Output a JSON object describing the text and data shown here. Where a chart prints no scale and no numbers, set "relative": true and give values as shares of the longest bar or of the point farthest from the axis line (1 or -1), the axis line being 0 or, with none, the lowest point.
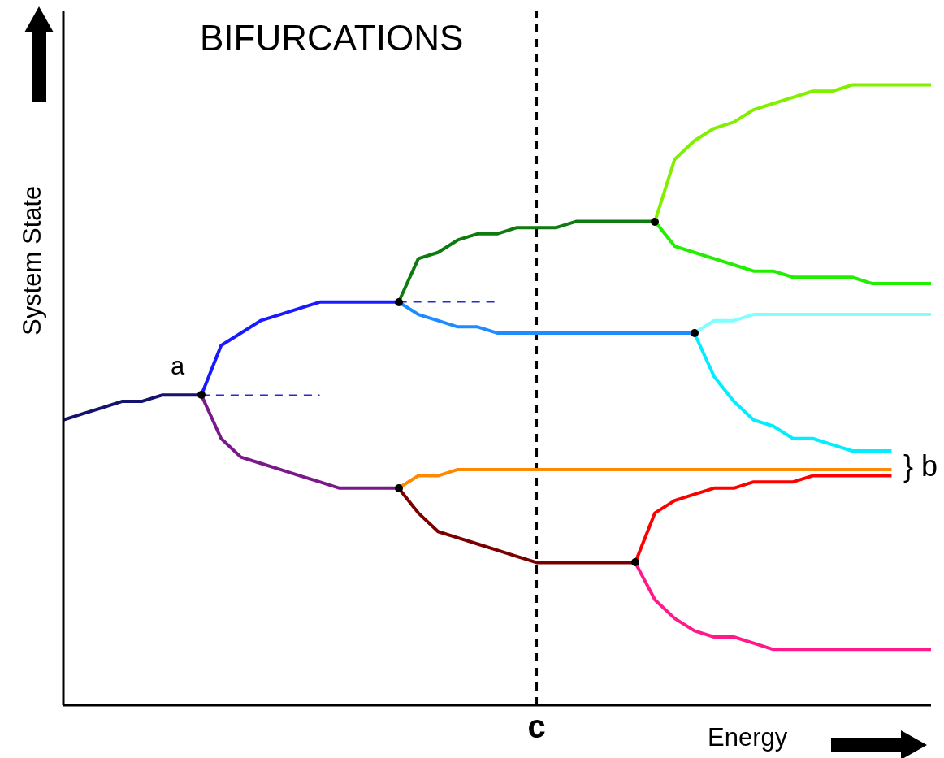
{
  "chart_data": {
    "type": "line",
    "title": "BIFURCATIONS",
    "xlabel": "Energy",
    "ylabel": "System State",
    "relative": true,
    "legend": false,
    "grid": false,
    "line_style": "solid",
    "marker": "none",
    "categories": [
      null,
      null,
      null,
      null,
      null,
      null,
      null,
      null,
      null,
      null,
      null,
      null,
      null,
      null,
      null,
      null,
      null,
      null,
      null,
      null,
      null,
      null,
      null,
      null,
      null,
      null,
      null,
      null,
      null,
      null,
      null,
      null,
      null,
      null,
      null,
      null,
      null,
      null,
      null,
      null,
      null,
      null,
      null,
      null,
      null
    ],
    "annotations": [
      "a",
      "} b",
      "c"
    ],
    "series": [
      {
        "color": "#14146e",
        "values": [
          0.46,
          0.47,
          0.48,
          0.49,
          0.49,
          0.5,
          0.5,
          0.5,
          null,
          null,
          null,
          null,
          null,
          null,
          null,
          null,
          null,
          null,
          null,
          null,
          null,
          null,
          null,
          null,
          null,
          null,
          null,
          null,
          null,
          null,
          null,
          null,
          null,
          null,
          null,
          null,
          null,
          null,
          null,
          null,
          null,
          null,
          null,
          null,
          null
        ]
      },
      {
        "color": "#1a1aff",
        "values": [
          null,
          null,
          null,
          null,
          null,
          null,
          null,
          0.5,
          0.58,
          0.6,
          0.62,
          0.63,
          0.64,
          0.65,
          0.65,
          0.65,
          0.65,
          0.65,
          null,
          null,
          null,
          null,
          null,
          null,
          null,
          null,
          null,
          null,
          null,
          null,
          null,
          null,
          null,
          null,
          null,
          null,
          null,
          null,
          null,
          null,
          null,
          null,
          null,
          null,
          null
        ]
      },
      {
        "color": "#7a1a8a",
        "values": [
          null,
          null,
          null,
          null,
          null,
          null,
          null,
          0.5,
          0.43,
          0.4,
          0.39,
          0.38,
          0.37,
          0.36,
          0.35,
          0.35,
          0.35,
          0.35,
          null,
          null,
          null,
          null,
          null,
          null,
          null,
          null,
          null,
          null,
          null,
          null,
          null,
          null,
          null,
          null,
          null,
          null,
          null,
          null,
          null,
          null,
          null,
          null,
          null,
          null,
          null
        ]
      },
      {
        "color": "#2a2ad0",
        "line_style": "dashed",
        "values": [
          null,
          null,
          null,
          null,
          null,
          null,
          null,
          0.5,
          0.5,
          0.5,
          0.5,
          0.5,
          0.5,
          0.5,
          null,
          null,
          null,
          null,
          null,
          null,
          null,
          null,
          null,
          null,
          null,
          null,
          null,
          null,
          null,
          null,
          null,
          null,
          null,
          null,
          null,
          null,
          null,
          null,
          null,
          null,
          null,
          null,
          null,
          null,
          null
        ]
      },
      {
        "color": "#2a2ad0",
        "line_style": "dashed",
        "values": [
          null,
          null,
          null,
          null,
          null,
          null,
          null,
          null,
          null,
          null,
          null,
          null,
          null,
          null,
          null,
          null,
          null,
          0.65,
          0.65,
          0.65,
          0.65,
          0.65,
          0.65,
          null,
          null,
          null,
          null,
          null,
          null,
          null,
          null,
          null,
          null,
          null,
          null,
          null,
          null,
          null,
          null,
          null,
          null,
          null,
          null,
          null,
          null
        ]
      },
      {
        "color": "#0f7a0f",
        "values": [
          null,
          null,
          null,
          null,
          null,
          null,
          null,
          null,
          null,
          null,
          null,
          null,
          null,
          null,
          null,
          null,
          null,
          0.65,
          0.72,
          0.73,
          0.75,
          0.76,
          0.76,
          0.77,
          0.77,
          0.77,
          0.78,
          0.78,
          0.78,
          0.78,
          0.78,
          null,
          null,
          null,
          null,
          null,
          null,
          null,
          null,
          null,
          null,
          null,
          null,
          null,
          null
        ]
      },
      {
        "color": "#1e8cff",
        "values": [
          null,
          null,
          null,
          null,
          null,
          null,
          null,
          null,
          null,
          null,
          null,
          null,
          null,
          null,
          null,
          null,
          null,
          0.65,
          0.63,
          0.62,
          0.61,
          0.61,
          0.6,
          0.6,
          0.6,
          0.6,
          0.6,
          0.6,
          0.6,
          0.6,
          0.6,
          0.6,
          0.6,
          null,
          null,
          null,
          null,
          null,
          null,
          null,
          null,
          null,
          null,
          null,
          null
        ]
      },
      {
        "color": "#80f000",
        "values": [
          null,
          null,
          null,
          null,
          null,
          null,
          null,
          null,
          null,
          null,
          null,
          null,
          null,
          null,
          null,
          null,
          null,
          null,
          null,
          null,
          null,
          null,
          null,
          null,
          null,
          null,
          null,
          null,
          null,
          null,
          0.78,
          0.88,
          0.91,
          0.93,
          0.94,
          0.96,
          0.97,
          0.98,
          0.99,
          0.99,
          1,
          1,
          1,
          1,
          1
        ]
      },
      {
        "color": "#22ee00",
        "values": [
          null,
          null,
          null,
          null,
          null,
          null,
          null,
          null,
          null,
          null,
          null,
          null,
          null,
          null,
          null,
          null,
          null,
          null,
          null,
          null,
          null,
          null,
          null,
          null,
          null,
          null,
          null,
          null,
          null,
          null,
          0.78,
          0.74,
          0.73,
          0.72,
          0.71,
          0.7,
          0.7,
          0.69,
          0.69,
          0.69,
          0.69,
          0.68,
          0.68,
          0.68,
          0.68
        ]
      },
      {
        "color": "#80ffff",
        "values": [
          null,
          null,
          null,
          null,
          null,
          null,
          null,
          null,
          null,
          null,
          null,
          null,
          null,
          null,
          null,
          null,
          null,
          null,
          null,
          null,
          null,
          null,
          null,
          null,
          null,
          null,
          null,
          null,
          null,
          null,
          null,
          null,
          0.6,
          0.62,
          0.62,
          0.63,
          0.63,
          0.63,
          0.63,
          0.63,
          0.63,
          0.63,
          0.63,
          0.63,
          0.63
        ]
      },
      {
        "color": "#00eeff",
        "values": [
          null,
          null,
          null,
          null,
          null,
          null,
          null,
          null,
          null,
          null,
          null,
          null,
          null,
          null,
          null,
          null,
          null,
          null,
          null,
          null,
          null,
          null,
          null,
          null,
          null,
          null,
          null,
          null,
          null,
          null,
          null,
          null,
          0.6,
          0.53,
          0.49,
          0.46,
          0.45,
          0.43,
          0.43,
          0.42,
          0.41,
          0.41,
          0.41,
          null,
          null
        ]
      },
      {
        "color": "#ff8800",
        "values": [
          null,
          null,
          null,
          null,
          null,
          null,
          null,
          null,
          null,
          null,
          null,
          null,
          null,
          null,
          null,
          null,
          null,
          0.35,
          0.37,
          0.37,
          0.38,
          0.38,
          0.38,
          0.38,
          0.38,
          0.38,
          0.38,
          0.38,
          0.38,
          0.38,
          0.38,
          0.38,
          0.38,
          0.38,
          0.38,
          0.38,
          0.38,
          0.38,
          0.38,
          0.38,
          0.38,
          0.38,
          0.38,
          null,
          null
        ]
      },
      {
        "color": "#7a0000",
        "values": [
          null,
          null,
          null,
          null,
          null,
          null,
          null,
          null,
          null,
          null,
          null,
          null,
          null,
          null,
          null,
          null,
          null,
          0.35,
          0.31,
          0.28,
          0.27,
          0.26,
          0.25,
          0.24,
          0.23,
          0.23,
          0.23,
          0.23,
          0.23,
          0.23,
          null,
          null,
          null,
          null,
          null,
          null,
          null,
          null,
          null,
          null,
          null,
          null,
          null,
          null,
          null
        ]
      },
      {
        "color": "#ff0000",
        "values": [
          null,
          null,
          null,
          null,
          null,
          null,
          null,
          null,
          null,
          null,
          null,
          null,
          null,
          null,
          null,
          null,
          null,
          null,
          null,
          null,
          null,
          null,
          null,
          null,
          null,
          null,
          null,
          null,
          null,
          0.23,
          0.31,
          0.33,
          0.34,
          0.35,
          0.35,
          0.36,
          0.36,
          0.36,
          0.37,
          0.37,
          0.37,
          0.37,
          0.37,
          null,
          null
        ]
      },
      {
        "color": "#ff1a8c",
        "values": [
          null,
          null,
          null,
          null,
          null,
          null,
          null,
          null,
          null,
          null,
          null,
          null,
          null,
          null,
          null,
          null,
          null,
          null,
          null,
          null,
          null,
          null,
          null,
          null,
          null,
          null,
          null,
          null,
          null,
          0.23,
          0.17,
          0.14,
          0.12,
          0.11,
          0.11,
          0.1,
          0.09,
          0.09,
          0.09,
          0.09,
          0.09,
          0.09,
          0.09,
          0.09,
          0.09
        ]
      }
    ]
  }
}
